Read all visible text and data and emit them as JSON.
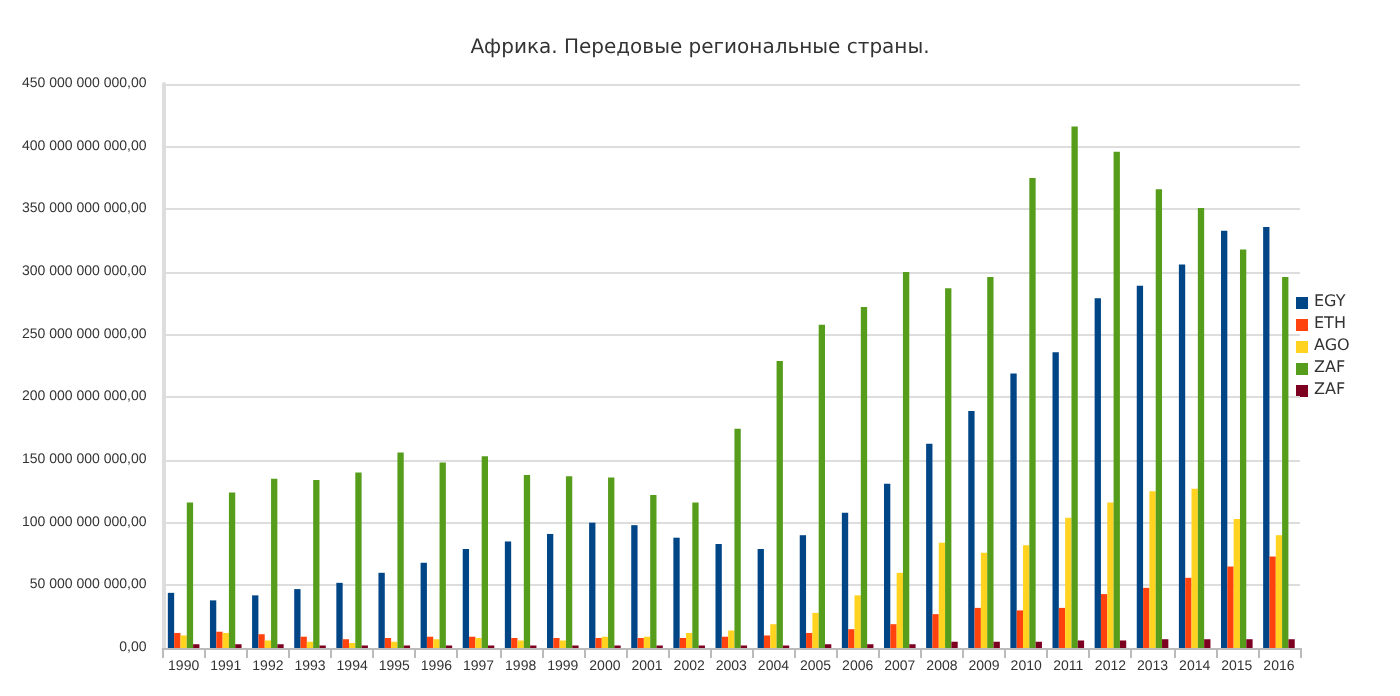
{
  "chart_data": {
    "type": "bar",
    "title": "Африка. Передовые региональные страны.",
    "categories": [
      "1990",
      "1991",
      "1992",
      "1993",
      "1994",
      "1995",
      "1996",
      "1997",
      "1998",
      "1999",
      "2000",
      "2001",
      "2002",
      "2003",
      "2004",
      "2005",
      "2006",
      "2007",
      "2008",
      "2009",
      "2010",
      "2011",
      "2012",
      "2013",
      "2014",
      "2015",
      "2016"
    ],
    "series": [
      {
        "name": "EGY",
        "color": "#004586",
        "values": [
          44000000000,
          38000000000,
          42000000000,
          47000000000,
          52000000000,
          60000000000,
          68000000000,
          79000000000,
          85000000000,
          91000000000,
          100000000000,
          98000000000,
          88000000000,
          83000000000,
          79000000000,
          90000000000,
          108000000000,
          131000000000,
          163000000000,
          189000000000,
          219000000000,
          236000000000,
          279000000000,
          289000000000,
          306000000000,
          333000000000,
          336000000000
        ]
      },
      {
        "name": "ETH",
        "color": "#ff420e",
        "values": [
          12000000000,
          13000000000,
          11000000000,
          9000000000,
          7000000000,
          8000000000,
          9000000000,
          9000000000,
          8000000000,
          8000000000,
          8000000000,
          8000000000,
          8000000000,
          9000000000,
          10000000000,
          12000000000,
          15000000000,
          19000000000,
          27000000000,
          32000000000,
          30000000000,
          32000000000,
          43000000000,
          48000000000,
          56000000000,
          65000000000,
          73000000000
        ]
      },
      {
        "name": "AGO",
        "color": "#ffd320",
        "values": [
          10000000000,
          12000000000,
          6000000000,
          5000000000,
          4000000000,
          5000000000,
          7000000000,
          8000000000,
          6000000000,
          6000000000,
          9000000000,
          9000000000,
          12000000000,
          14000000000,
          19000000000,
          28000000000,
          42000000000,
          60000000000,
          84000000000,
          76000000000,
          82000000000,
          104000000000,
          116000000000,
          125000000000,
          127000000000,
          103000000000,
          90000000000
        ]
      },
      {
        "name": "ZAF",
        "color": "#579d1c",
        "values": [
          116000000000,
          124000000000,
          135000000000,
          134000000000,
          140000000000,
          156000000000,
          148000000000,
          153000000000,
          138000000000,
          137000000000,
          136000000000,
          122000000000,
          116000000000,
          175000000000,
          229000000000,
          258000000000,
          272000000000,
          300000000000,
          287000000000,
          296000000000,
          375000000000,
          416000000000,
          396000000000,
          366000000000,
          351000000000,
          318000000000,
          296000000000
        ]
      },
      {
        "name": "ZAF",
        "color": "#7e0021",
        "values": [
          3000000000,
          3000000000,
          3000000000,
          2000000000,
          2000000000,
          2000000000,
          2000000000,
          2000000000,
          2000000000,
          2000000000,
          2000000000,
          2000000000,
          2000000000,
          2000000000,
          2000000000,
          3000000000,
          3000000000,
          3000000000,
          5000000000,
          5000000000,
          5000000000,
          6000000000,
          6000000000,
          7000000000,
          7000000000,
          7000000000,
          7000000000
        ]
      }
    ],
    "ylim": [
      0,
      450000000000
    ],
    "yticks": [
      {
        "value": 0,
        "label": "0,00"
      },
      {
        "value": 50000000000,
        "label": "50 000 000 000,00"
      },
      {
        "value": 100000000000,
        "label": "100 000 000 000,00"
      },
      {
        "value": 150000000000,
        "label": "150 000 000 000,00"
      },
      {
        "value": 200000000000,
        "label": "200 000 000 000,00"
      },
      {
        "value": 250000000000,
        "label": "250 000 000 000,00"
      },
      {
        "value": 300000000000,
        "label": "300 000 000 000,00"
      },
      {
        "value": 350000000000,
        "label": "350 000 000 000,00"
      },
      {
        "value": 400000000000,
        "label": "400 000 000 000,00"
      },
      {
        "value": 450000000000,
        "label": "450 000 000 000,00"
      }
    ],
    "grid": "y",
    "legend": "right"
  }
}
